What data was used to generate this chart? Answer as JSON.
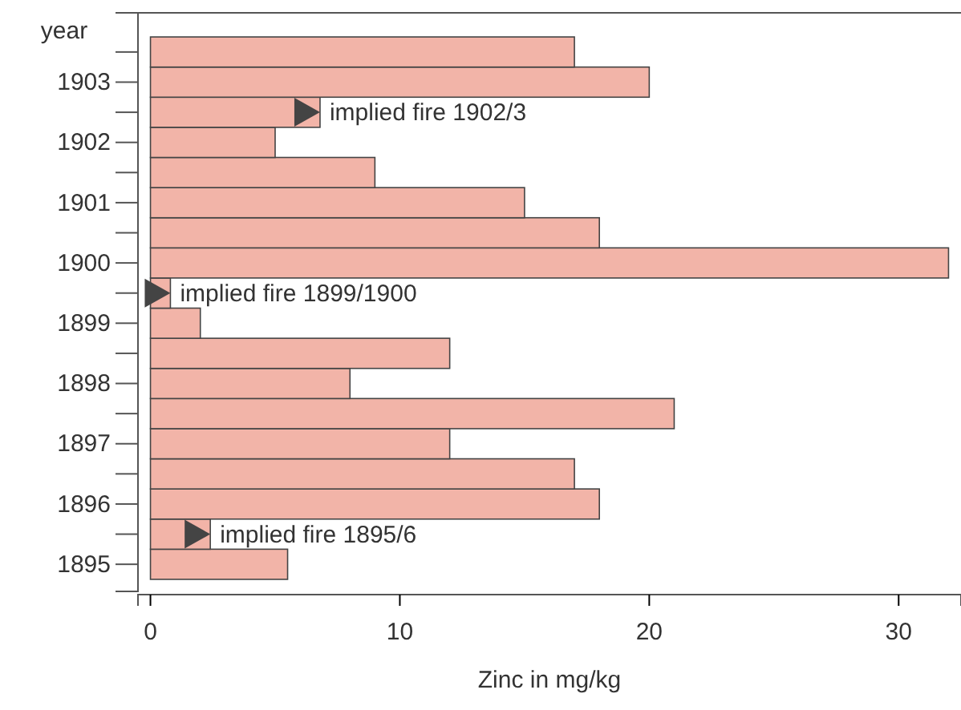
{
  "chart_data": {
    "type": "bar",
    "orientation": "horizontal",
    "xlabel": "Zinc in mg/kg",
    "ylabel": "year",
    "x": [
      1895,
      1895.5,
      1896,
      1896.5,
      1897,
      1897.5,
      1898,
      1898.5,
      1899,
      1899.5,
      1900,
      1900.5,
      1901,
      1901.5,
      1902,
      1902.5,
      1903,
      1903.5
    ],
    "series": [
      {
        "color": "#f2b4a8",
        "values": [
          5.5,
          2.4,
          18,
          17,
          12,
          21,
          8,
          12,
          2,
          0.8,
          32,
          18,
          15,
          9,
          5,
          6.8,
          20,
          17
        ]
      }
    ],
    "xlim": [
      -0.5,
      32.5
    ],
    "xticks": [
      0,
      10,
      20,
      30
    ],
    "ylim": [
      1894.55,
      1904.15
    ],
    "yticks": [
      1895,
      {
        "value": 1895.5,
        "label": null
      },
      1896,
      {
        "value": 1896.5,
        "label": null
      },
      1897,
      {
        "value": 1897.5,
        "label": null
      },
      1898,
      {
        "value": 1898.5,
        "label": null
      },
      1899,
      {
        "value": 1899.5,
        "label": null
      },
      1900,
      {
        "value": 1900.5,
        "label": null
      },
      1901,
      {
        "value": 1901.5,
        "label": null
      },
      1902,
      {
        "value": 1902.5,
        "label": null
      },
      1903,
      {
        "value": 1903.5,
        "label": null
      }
    ],
    "annotations": [
      {
        "text": "implied fire 1902/3",
        "x": 6.8,
        "y": 1902.5
      },
      {
        "text": "implied fire 1899/1900",
        "x": 0.8,
        "y": 1899.5
      },
      {
        "text": "implied fire 1895/6",
        "x": 2.4,
        "y": 1895.5
      }
    ],
    "grid": false
  }
}
